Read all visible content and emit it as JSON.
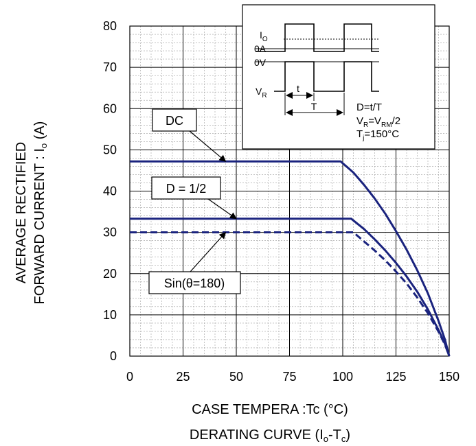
{
  "chart_data": {
    "type": "line",
    "title": "DERATING CURVE (I",
    "title_sub1": "o",
    "title_mid": "-T",
    "title_sub2": "c",
    "title_end": ")",
    "xlabel": "CASE TEMPERA :Tc (°C)",
    "ylabel_line1": "AVERAGE RECTIFIED",
    "ylabel_line2": "FORWARD CURRENT : I",
    "ylabel_sub": "o",
    "ylabel_unit": " (A)",
    "xlim": [
      0,
      150
    ],
    "ylim": [
      0,
      80
    ],
    "x_ticks": [
      0,
      25,
      50,
      75,
      100,
      125,
      150
    ],
    "y_ticks": [
      0,
      10,
      20,
      30,
      40,
      50,
      60,
      70,
      80
    ],
    "grid": true,
    "minor_grid": true,
    "series": [
      {
        "name": "DC",
        "style": "solid",
        "color": "#1a237e",
        "x": [
          0,
          99,
          105,
          110,
          115,
          120,
          125,
          130,
          135,
          140,
          145,
          148,
          150
        ],
        "y": [
          47.2,
          47.2,
          44.5,
          41.5,
          38.2,
          34.5,
          30.3,
          25.8,
          20.8,
          15.2,
          8.5,
          4.0,
          0
        ]
      },
      {
        "name": "D = 1/2",
        "style": "solid",
        "color": "#1a237e",
        "x": [
          0,
          104,
          110,
          115,
          120,
          125,
          130,
          135,
          140,
          145,
          148,
          150
        ],
        "y": [
          33.3,
          33.3,
          30.8,
          28.3,
          25.6,
          22.6,
          19.3,
          15.6,
          11.3,
          6.3,
          3.0,
          0
        ]
      },
      {
        "name": "Sin(θ=180)",
        "style": "dashed",
        "color": "#1a237e",
        "x": [
          0,
          105,
          110,
          115,
          120,
          125,
          130,
          135,
          140,
          145,
          148,
          150
        ],
        "y": [
          30.0,
          30.0,
          27.8,
          25.6,
          23.2,
          20.5,
          17.6,
          14.2,
          10.4,
          5.9,
          2.8,
          0
        ]
      }
    ],
    "annotations": [
      {
        "label": "DC",
        "point": [
          45,
          47.2
        ]
      },
      {
        "label": "D = 1/2",
        "point": [
          50,
          33.3
        ]
      },
      {
        "label": "Sin(θ=180)",
        "point": [
          45,
          30.0
        ]
      }
    ]
  },
  "inset": {
    "io_label": "I",
    "io_sub": "O",
    "zero_a": "0A",
    "zero_v": "0V",
    "vr_label": "V",
    "vr_sub": "R",
    "t_label": "t",
    "T_label": "T",
    "d_formula": "D=t/T",
    "vr_formula_a": "V",
    "vr_formula_sub1": "R",
    "vr_formula_b": "=V",
    "vr_formula_sub2": "RM",
    "vr_formula_c": "/2",
    "tj_a": "T",
    "tj_sub": "j",
    "tj_b": "=150°C"
  }
}
